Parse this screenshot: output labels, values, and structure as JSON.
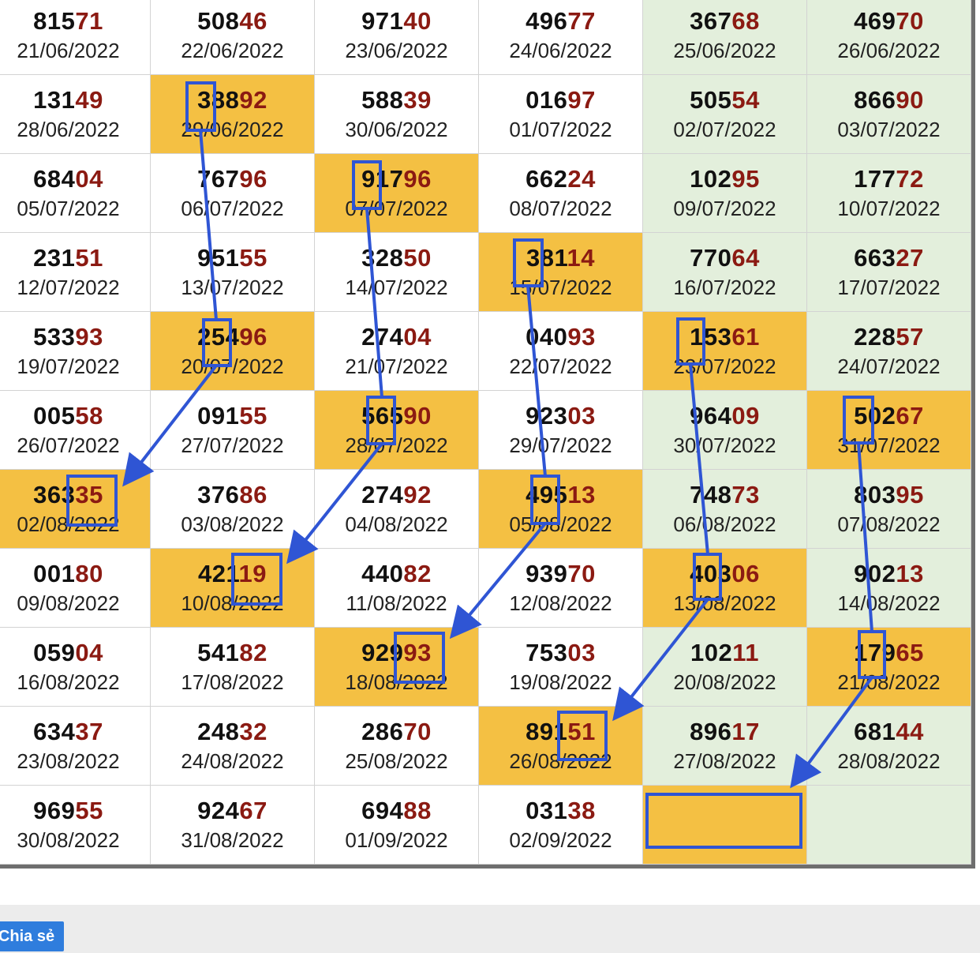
{
  "table": {
    "rows": [
      [
        [
          "81571",
          "21/06/2022"
        ],
        [
          "50846",
          "22/06/2022"
        ],
        [
          "97140",
          "23/06/2022"
        ],
        [
          "49677",
          "24/06/2022"
        ],
        [
          "36768",
          "25/06/2022"
        ],
        [
          "46970",
          "26/06/2022"
        ]
      ],
      [
        [
          "13149",
          "28/06/2022"
        ],
        [
          "38892",
          "29/06/2022"
        ],
        [
          "58839",
          "30/06/2022"
        ],
        [
          "01697",
          "01/07/2022"
        ],
        [
          "50554",
          "02/07/2022"
        ],
        [
          "86690",
          "03/07/2022"
        ]
      ],
      [
        [
          "68404",
          "05/07/2022"
        ],
        [
          "76796",
          "06/07/2022"
        ],
        [
          "91796",
          "07/07/2022"
        ],
        [
          "66224",
          "08/07/2022"
        ],
        [
          "10295",
          "09/07/2022"
        ],
        [
          "17772",
          "10/07/2022"
        ]
      ],
      [
        [
          "23151",
          "12/07/2022"
        ],
        [
          "95155",
          "13/07/2022"
        ],
        [
          "32850",
          "14/07/2022"
        ],
        [
          "38114",
          "15/07/2022"
        ],
        [
          "77064",
          "16/07/2022"
        ],
        [
          "66327",
          "17/07/2022"
        ]
      ],
      [
        [
          "53393",
          "19/07/2022"
        ],
        [
          "25496",
          "20/07/2022"
        ],
        [
          "27404",
          "21/07/2022"
        ],
        [
          "04093",
          "22/07/2022"
        ],
        [
          "15361",
          "23/07/2022"
        ],
        [
          "22857",
          "24/07/2022"
        ]
      ],
      [
        [
          "00558",
          "26/07/2022"
        ],
        [
          "09155",
          "27/07/2022"
        ],
        [
          "56590",
          "28/07/2022"
        ],
        [
          "92303",
          "29/07/2022"
        ],
        [
          "96409",
          "30/07/2022"
        ],
        [
          "50267",
          "31/07/2022"
        ]
      ],
      [
        [
          "36335",
          "02/08/2022"
        ],
        [
          "37686",
          "03/08/2022"
        ],
        [
          "27492",
          "04/08/2022"
        ],
        [
          "49513",
          "05/08/2022"
        ],
        [
          "74873",
          "06/08/2022"
        ],
        [
          "80395",
          "07/08/2022"
        ]
      ],
      [
        [
          "00180",
          "09/08/2022"
        ],
        [
          "42119",
          "10/08/2022"
        ],
        [
          "44082",
          "11/08/2022"
        ],
        [
          "93970",
          "12/08/2022"
        ],
        [
          "40306",
          "13/08/2022"
        ],
        [
          "90213",
          "14/08/2022"
        ]
      ],
      [
        [
          "05904",
          "16/08/2022"
        ],
        [
          "54182",
          "17/08/2022"
        ],
        [
          "92993",
          "18/08/2022"
        ],
        [
          "75303",
          "19/08/2022"
        ],
        [
          "10211",
          "20/08/2022"
        ],
        [
          "17965",
          "21/08/2022"
        ]
      ],
      [
        [
          "63437",
          "23/08/2022"
        ],
        [
          "24832",
          "24/08/2022"
        ],
        [
          "28670",
          "25/08/2022"
        ],
        [
          "89151",
          "26/08/2022"
        ],
        [
          "89617",
          "27/08/2022"
        ],
        [
          "68144",
          "28/08/2022"
        ]
      ],
      [
        [
          "96955",
          "30/08/2022"
        ],
        [
          "92467",
          "31/08/2022"
        ],
        [
          "69488",
          "01/09/2022"
        ],
        [
          "03138",
          "02/09/2022"
        ],
        [
          "",
          ""
        ],
        [
          "",
          ""
        ]
      ]
    ],
    "highlighted_cells": [
      [
        1,
        1
      ],
      [
        2,
        2
      ],
      [
        3,
        3
      ],
      [
        4,
        1
      ],
      [
        4,
        4
      ],
      [
        5,
        2
      ],
      [
        5,
        5
      ],
      [
        6,
        0
      ],
      [
        6,
        3
      ],
      [
        7,
        1
      ],
      [
        7,
        4
      ],
      [
        8,
        2
      ],
      [
        8,
        5
      ],
      [
        9,
        3
      ],
      [
        10,
        4
      ]
    ],
    "weekend_columns": [
      4,
      5
    ]
  },
  "colors": {
    "highlight": "#f4c043",
    "weekend": "#e3efdc",
    "tail_digits": "#8b1a12",
    "annotation": "#2f55d4",
    "share_button": "#2f7ddd"
  },
  "annotations": {
    "type": "hand-drawn arrows linking boxed digits",
    "chains": 5
  },
  "footer": {
    "share_label": "Chia sẻ"
  }
}
